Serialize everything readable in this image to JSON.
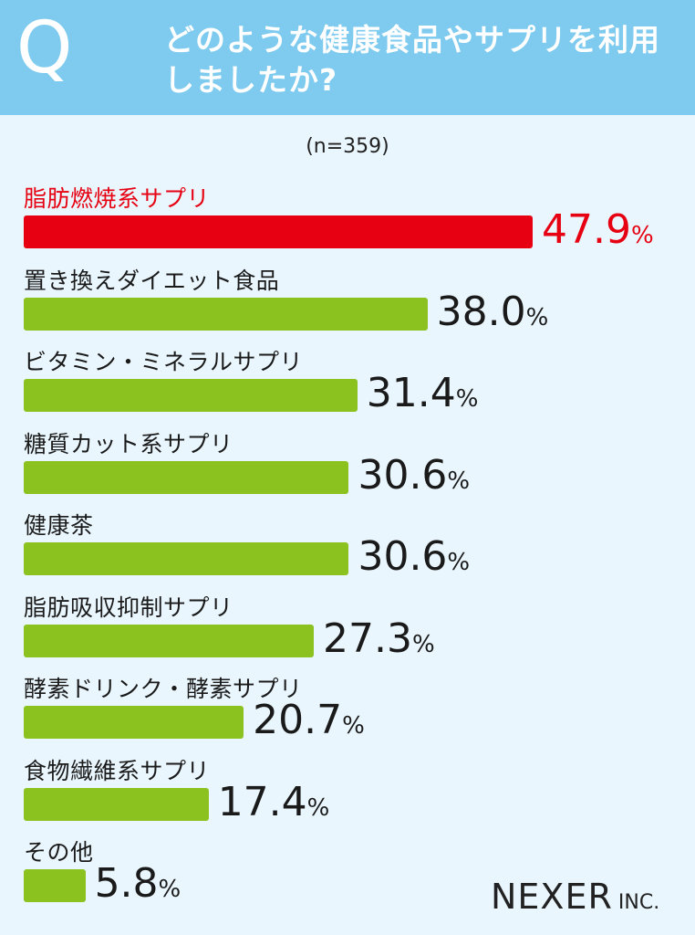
{
  "header": {
    "q_letter": "Q",
    "question": "どのような健康食品やサプリを利用しましたか?"
  },
  "sample": "(n=359)",
  "chart_data": {
    "type": "bar",
    "orientation": "horizontal",
    "categories": [
      "脂肪燃焼系サプリ",
      "置き換えダイエット食品",
      "ビタミン・ミネラルサプリ",
      "糖質カット系サプリ",
      "健康茶",
      "脂肪吸収抑制サプリ",
      "酵素ドリンク・酵素サプリ",
      "食物繊維系サプリ",
      "その他"
    ],
    "values": [
      47.9,
      38.0,
      31.4,
      30.6,
      30.6,
      27.3,
      20.7,
      17.4,
      5.8
    ],
    "value_labels": [
      "47.9",
      "38.0",
      "31.4",
      "30.6",
      "30.6",
      "27.3",
      "20.7",
      "17.4",
      "5.8"
    ],
    "unit": "%",
    "colors": {
      "highlight": "#e60012",
      "bar": "#8cc21f"
    },
    "highlight_index": 0
  },
  "logo": {
    "main": "NEXER",
    "suffix": "INC."
  },
  "colors": {
    "header_bg": "#7ecbef",
    "page_bg": "#e9f6fd"
  }
}
